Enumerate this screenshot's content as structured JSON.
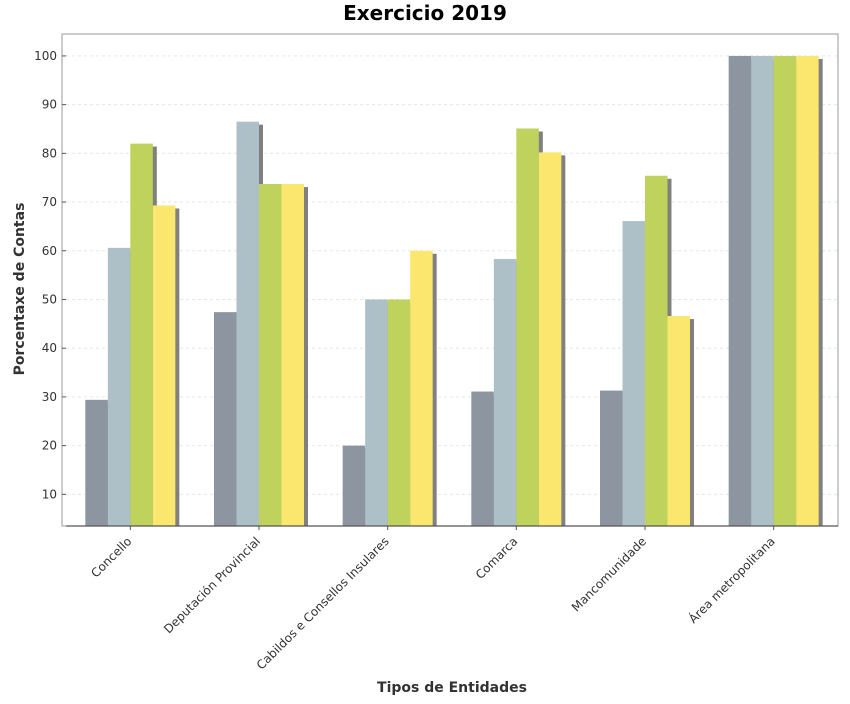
{
  "chart_data": {
    "type": "bar",
    "title": "Exercicio 2019",
    "xlabel": "Tipos de Entidades",
    "ylabel": "Porcentaxe de Contas",
    "ylim": [
      3.5,
      104.5
    ],
    "yticks": [
      10,
      20,
      30,
      40,
      50,
      60,
      70,
      80,
      90,
      100
    ],
    "grid": true,
    "legend": "none",
    "categories": [
      "Concello",
      "Deputación Provincial",
      "Cabildos e Consellos Insulares",
      "Comarca",
      "Mancomunidade",
      "Área metropolitana"
    ],
    "series": [
      {
        "color": "#8c95a0",
        "values": [
          29.4,
          47.4,
          20.0,
          31.1,
          31.3,
          100.0
        ]
      },
      {
        "color": "#adc0c8",
        "values": [
          60.6,
          86.5,
          50.0,
          58.3,
          66.1,
          100.0
        ]
      },
      {
        "color": "#bfd25c",
        "values": [
          82.0,
          73.7,
          50.0,
          85.1,
          75.4,
          100.0
        ]
      },
      {
        "color": "#fbe76e",
        "values": [
          69.3,
          73.7,
          60.0,
          80.2,
          46.6,
          100.0
        ]
      }
    ],
    "shadow_color": "#808080"
  }
}
